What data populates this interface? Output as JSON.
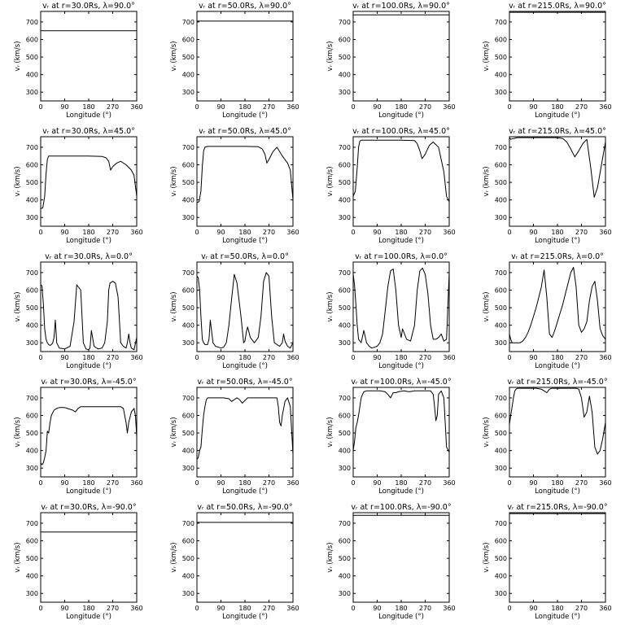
{
  "figure": {
    "xlabel": "Longitude (°)",
    "ylabel": "vᵣ (km/s)",
    "xlim": [
      0,
      360
    ],
    "ylim": [
      250,
      760
    ],
    "xticks": [
      0,
      90,
      180,
      270,
      360
    ],
    "yticks": [
      300,
      400,
      500,
      600,
      700
    ],
    "line_color": "#000000"
  },
  "chart_data": [
    {
      "type": "line",
      "title": "vᵣ at r=30.0Rs, λ=90.0°",
      "x": [
        0,
        360
      ],
      "y": [
        650,
        650
      ]
    },
    {
      "type": "line",
      "title": "vᵣ at r=50.0Rs, λ=90.0°",
      "x": [
        0,
        360
      ],
      "y": [
        705,
        705
      ]
    },
    {
      "type": "line",
      "title": "vᵣ at r=100.0Rs, λ=90.0°",
      "x": [
        0,
        360
      ],
      "y": [
        740,
        740
      ]
    },
    {
      "type": "line",
      "title": "vᵣ at r=215.0Rs, λ=90.0°",
      "x": [
        0,
        360
      ],
      "y": [
        755,
        755
      ]
    },
    {
      "type": "line",
      "title": "vᵣ at r=30.0Rs, λ=45.0°",
      "x": [
        0,
        8,
        15,
        20,
        25,
        30,
        40,
        60,
        120,
        180,
        230,
        245,
        255,
        262,
        270,
        285,
        300,
        320,
        340,
        350,
        360
      ],
      "y": [
        350,
        355,
        420,
        550,
        630,
        650,
        650,
        650,
        650,
        650,
        648,
        640,
        620,
        570,
        590,
        610,
        620,
        600,
        570,
        540,
        420
      ]
    },
    {
      "type": "line",
      "title": "vᵣ at r=50.0Rs, λ=45.0°",
      "x": [
        0,
        8,
        15,
        20,
        25,
        30,
        40,
        60,
        120,
        180,
        230,
        245,
        255,
        262,
        270,
        285,
        300,
        320,
        340,
        350,
        360
      ],
      "y": [
        385,
        390,
        450,
        590,
        680,
        700,
        705,
        705,
        705,
        705,
        703,
        690,
        660,
        610,
        630,
        675,
        700,
        650,
        610,
        570,
        400
      ]
    },
    {
      "type": "line",
      "title": "vᵣ at r=100.0Rs, λ=45.0°",
      "x": [
        0,
        8,
        15,
        20,
        25,
        30,
        40,
        60,
        120,
        180,
        230,
        240,
        250,
        258,
        270,
        285,
        300,
        320,
        340,
        350,
        360
      ],
      "y": [
        420,
        450,
        580,
        700,
        735,
        740,
        740,
        740,
        740,
        740,
        738,
        720,
        680,
        635,
        660,
        710,
        730,
        700,
        560,
        420,
        390
      ]
    },
    {
      "type": "line",
      "title": "vᵣ at r=215.0Rs, λ=45.0°",
      "x": [
        0,
        5,
        15,
        30,
        60,
        120,
        180,
        200,
        215,
        230,
        245,
        260,
        275,
        290,
        305,
        318,
        330,
        345,
        360
      ],
      "y": [
        755,
        745,
        750,
        755,
        755,
        755,
        755,
        750,
        730,
        690,
        645,
        680,
        720,
        745,
        580,
        415,
        470,
        600,
        730
      ]
    },
    {
      "type": "line",
      "title": "vᵣ at r=30.0Rs, λ=0.0°",
      "x": [
        0,
        5,
        10,
        15,
        20,
        25,
        30,
        35,
        40,
        45,
        50,
        55,
        60,
        70,
        90,
        110,
        125,
        135,
        150,
        160,
        170,
        180,
        185,
        190,
        200,
        215,
        230,
        240,
        250,
        255,
        260,
        270,
        280,
        290,
        300,
        310,
        320,
        325,
        330,
        335,
        340,
        350,
        360
      ],
      "y": [
        630,
        625,
        520,
        380,
        320,
        300,
        290,
        285,
        290,
        300,
        330,
        430,
        300,
        270,
        265,
        280,
        420,
        630,
        600,
        300,
        265,
        260,
        270,
        370,
        280,
        265,
        270,
        300,
        420,
        600,
        640,
        650,
        640,
        560,
        300,
        280,
        270,
        300,
        350,
        300,
        270,
        260,
        330
      ]
    },
    {
      "type": "line",
      "title": "vᵣ at r=50.0Rs, λ=0.0°",
      "x": [
        0,
        5,
        10,
        15,
        20,
        25,
        30,
        40,
        45,
        50,
        60,
        70,
        90,
        100,
        110,
        120,
        130,
        140,
        150,
        165,
        175,
        180,
        185,
        190,
        200,
        215,
        230,
        240,
        250,
        260,
        270,
        280,
        290,
        300,
        310,
        320,
        325,
        330,
        340,
        350,
        360
      ],
      "y": [
        680,
        670,
        600,
        450,
        320,
        300,
        290,
        290,
        320,
        430,
        300,
        280,
        270,
        275,
        300,
        400,
        550,
        690,
        640,
        450,
        300,
        310,
        360,
        390,
        330,
        300,
        330,
        450,
        650,
        700,
        680,
        450,
        300,
        290,
        280,
        300,
        350,
        310,
        280,
        270,
        300
      ]
    },
    {
      "type": "line",
      "title": "vᵣ at r=100.0Rs, λ=0.0°",
      "x": [
        0,
        5,
        10,
        15,
        20,
        25,
        30,
        40,
        50,
        60,
        70,
        90,
        100,
        110,
        120,
        130,
        140,
        150,
        160,
        170,
        180,
        185,
        200,
        215,
        230,
        240,
        250,
        260,
        270,
        280,
        290,
        300,
        310,
        320,
        330,
        340,
        350,
        360
      ],
      "y": [
        690,
        630,
        520,
        400,
        320,
        310,
        300,
        370,
        300,
        280,
        270,
        280,
        300,
        350,
        480,
        620,
        710,
        720,
        600,
        400,
        330,
        380,
        320,
        310,
        400,
        600,
        710,
        725,
        690,
        580,
        400,
        320,
        320,
        330,
        350,
        310,
        320,
        700
      ]
    },
    {
      "type": "line",
      "title": "vᵣ at r=215.0Rs, λ=0.0°",
      "x": [
        0,
        5,
        10,
        20,
        30,
        40,
        50,
        60,
        70,
        80,
        90,
        100,
        110,
        120,
        130,
        140,
        150,
        160,
        170,
        180,
        190,
        200,
        210,
        220,
        230,
        240,
        250,
        260,
        270,
        280,
        290,
        300,
        310,
        320,
        330,
        340,
        350,
        360
      ],
      "y": [
        350,
        320,
        300,
        300,
        300,
        300,
        310,
        330,
        360,
        400,
        450,
        500,
        560,
        620,
        715,
        560,
        350,
        330,
        370,
        420,
        470,
        520,
        580,
        640,
        700,
        730,
        620,
        400,
        360,
        380,
        420,
        540,
        620,
        650,
        540,
        380,
        340,
        320
      ]
    },
    {
      "type": "line",
      "title": "vᵣ at r=30.0Rs, λ=-45.0°",
      "x": [
        0,
        5,
        10,
        15,
        20,
        25,
        30,
        35,
        40,
        50,
        60,
        70,
        90,
        100,
        120,
        130,
        140,
        150,
        170,
        190,
        210,
        230,
        250,
        270,
        300,
        310,
        320,
        325,
        330,
        340,
        350,
        355,
        360
      ],
      "y": [
        330,
        320,
        330,
        360,
        400,
        510,
        500,
        560,
        600,
        630,
        640,
        645,
        645,
        640,
        630,
        620,
        640,
        650,
        650,
        650,
        650,
        650,
        650,
        650,
        650,
        640,
        560,
        500,
        560,
        620,
        640,
        600,
        480
      ]
    },
    {
      "type": "line",
      "title": "vᵣ at r=50.0Rs, λ=-45.0°",
      "x": [
        0,
        5,
        10,
        15,
        20,
        25,
        30,
        35,
        40,
        50,
        60,
        80,
        100,
        120,
        130,
        140,
        150,
        160,
        170,
        190,
        210,
        230,
        250,
        270,
        290,
        300,
        305,
        310,
        315,
        320,
        330,
        340,
        350,
        360
      ],
      "y": [
        350,
        360,
        400,
        420,
        520,
        600,
        650,
        690,
        700,
        700,
        700,
        700,
        700,
        695,
        680,
        690,
        700,
        690,
        670,
        700,
        700,
        700,
        700,
        700,
        700,
        700,
        650,
        560,
        540,
        600,
        680,
        700,
        650,
        380
      ]
    },
    {
      "type": "line",
      "title": "vᵣ at r=100.0Rs, λ=-45.0°",
      "x": [
        0,
        5,
        10,
        15,
        20,
        25,
        30,
        35,
        40,
        50,
        60,
        80,
        100,
        120,
        130,
        140,
        150,
        160,
        170,
        190,
        210,
        230,
        250,
        270,
        290,
        300,
        305,
        310,
        315,
        320,
        330,
        340,
        350,
        360
      ],
      "y": [
        400,
        450,
        530,
        560,
        600,
        650,
        700,
        720,
        735,
        740,
        740,
        740,
        740,
        735,
        720,
        700,
        730,
        730,
        735,
        740,
        735,
        740,
        740,
        740,
        740,
        720,
        650,
        570,
        600,
        720,
        740,
        700,
        420,
        390
      ]
    },
    {
      "type": "line",
      "title": "vᵣ at r=215.0Rs, λ=-45.0°",
      "x": [
        0,
        5,
        10,
        15,
        20,
        25,
        30,
        40,
        60,
        80,
        100,
        120,
        130,
        140,
        150,
        160,
        170,
        190,
        210,
        230,
        250,
        260,
        270,
        280,
        290,
        300,
        310,
        320,
        330,
        340,
        350,
        360
      ],
      "y": [
        550,
        600,
        650,
        700,
        740,
        750,
        755,
        755,
        755,
        755,
        755,
        750,
        740,
        730,
        750,
        755,
        755,
        755,
        755,
        755,
        755,
        750,
        700,
        590,
        620,
        710,
        620,
        420,
        380,
        400,
        470,
        560
      ]
    },
    {
      "type": "line",
      "title": "vᵣ at r=30.0Rs, λ=-90.0°",
      "x": [
        0,
        360
      ],
      "y": [
        650,
        650
      ]
    },
    {
      "type": "line",
      "title": "vᵣ at r=50.0Rs, λ=-90.0°",
      "x": [
        0,
        360
      ],
      "y": [
        705,
        705
      ]
    },
    {
      "type": "line",
      "title": "vᵣ at r=100.0Rs, λ=-90.0°",
      "x": [
        0,
        360
      ],
      "y": [
        745,
        745
      ]
    },
    {
      "type": "line",
      "title": "vᵣ at r=215.0Rs, λ=-90.0°",
      "x": [
        0,
        360
      ],
      "y": [
        755,
        755
      ]
    }
  ]
}
